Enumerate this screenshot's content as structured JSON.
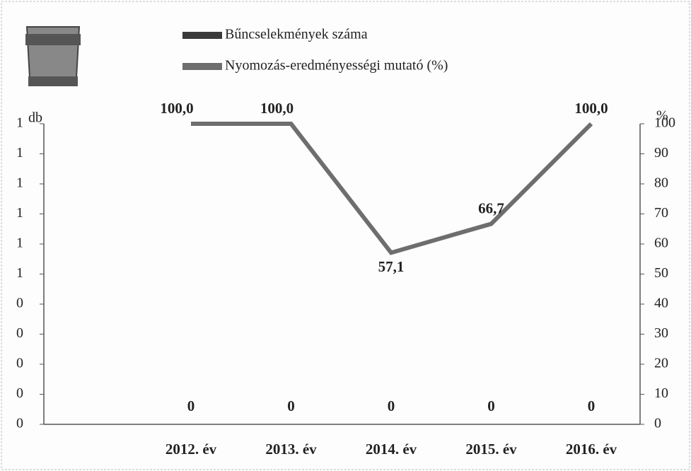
{
  "chart_data": {
    "type": "combo",
    "categories": [
      "2012. év",
      "2013. év",
      "2014. év",
      "2015. év",
      "2016. év"
    ],
    "series": [
      {
        "name": "Bűncselekmények száma",
        "type": "bar",
        "color": "#3a3a3a",
        "values": [
          0,
          0,
          0,
          0,
          0
        ],
        "value_labels": [
          "0",
          "0",
          "0",
          "0",
          "0"
        ]
      },
      {
        "name": "Nyomozás-eredményességi mutató (%)",
        "type": "line",
        "axis": "y2",
        "color": "#6e6e6e",
        "values": [
          100,
          100,
          57.1,
          66.7,
          100
        ],
        "value_labels": [
          "100,0",
          "100,0",
          "57,1",
          "66,7",
          "100,0"
        ]
      }
    ],
    "ylabel": "db",
    "y2label": "%",
    "ylim": [
      0,
      1
    ],
    "yticks": [
      {
        "value": 0,
        "label": "0"
      },
      {
        "value": 0.1,
        "label": "0"
      },
      {
        "value": 0.2,
        "label": "0"
      },
      {
        "value": 0.3,
        "label": "0"
      },
      {
        "value": 0.4,
        "label": "0"
      },
      {
        "value": 0.5,
        "label": "1"
      },
      {
        "value": 0.6,
        "label": "1"
      },
      {
        "value": 0.7,
        "label": "1"
      },
      {
        "value": 0.8,
        "label": "1"
      },
      {
        "value": 0.9,
        "label": "1"
      },
      {
        "value": 1,
        "label": "1"
      }
    ],
    "y2lim": [
      0,
      100
    ],
    "y2ticks": [
      0,
      10,
      20,
      30,
      40,
      50,
      60,
      70,
      80,
      90,
      100
    ]
  }
}
